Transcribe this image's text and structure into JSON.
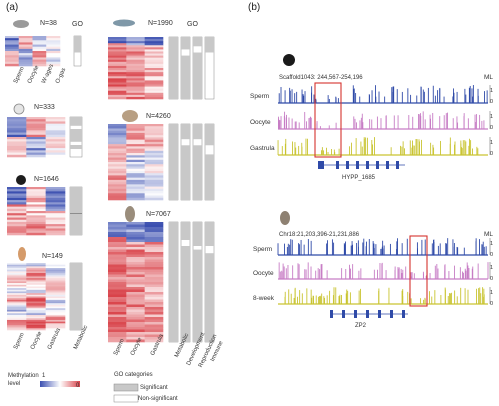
{
  "panel_a": {
    "label": "(a)",
    "go_header": "GO",
    "blocks": [
      {
        "n": "N=38"
      },
      {
        "n": "N=1990"
      },
      {
        "n": "N=333"
      },
      {
        "n": "N=4260"
      },
      {
        "n": "N=1646"
      },
      {
        "n": "N=7067"
      },
      {
        "n": "N=149"
      }
    ],
    "conditions_3": [
      "Sperm",
      "Oocyte",
      "Gastrula"
    ],
    "conditions_top": [
      "Sperm",
      "Oocyte",
      "W-ages",
      "O-gas"
    ],
    "go_columns": [
      "Metabolic",
      "Development",
      "Reproduction",
      "Immune"
    ],
    "legend": {
      "methylation_title": "Methylation",
      "methylation_sub": "level",
      "high": "1",
      "low": "0",
      "go_title": "GO categories",
      "significant": "Significant",
      "not_significant": "Non-significant"
    },
    "colors": {
      "high": "#3b4fb0",
      "mid": "#ffffff",
      "low": "#d9434a",
      "sig": "#c8c8c8"
    }
  },
  "panel_b": {
    "label": "(b)",
    "top": {
      "scaffold": "Scaffold1043: 244,567-254,196",
      "ml": "ML",
      "tracks": [
        "Sperm",
        "Oocyte",
        "Gastrula"
      ],
      "ticks": [
        "1",
        "0"
      ],
      "gene": "HYPP_1685"
    },
    "bottom": {
      "scaffold": "Chr18:21,203,396-21,231,886",
      "ml": "ML",
      "tracks": [
        "Sperm",
        "Oocyte",
        "8-week"
      ],
      "ticks": [
        "1",
        "0"
      ],
      "gene": "ZP2"
    },
    "colors": {
      "sperm": "#2f4aa8",
      "oocyte": "#c77dc5",
      "late": "#c9c431",
      "box": "#d6332f"
    }
  }
}
